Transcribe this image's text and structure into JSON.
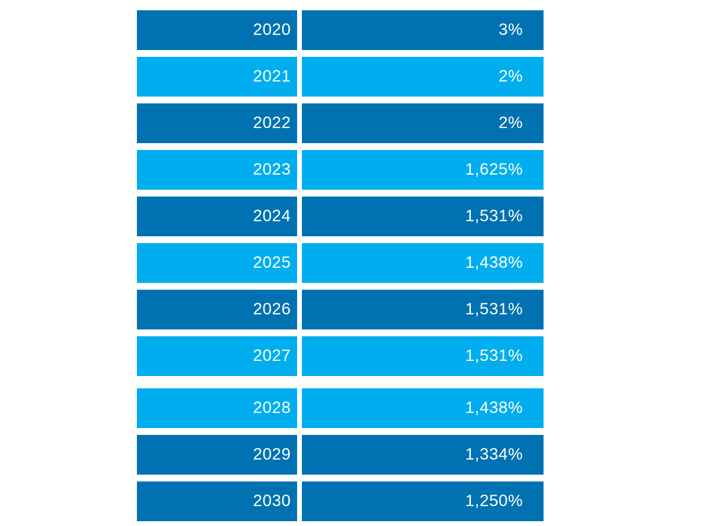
{
  "page": {
    "background_color": "#ffffff"
  },
  "palette": {
    "dark": "#0072b2",
    "light": "#00aeef",
    "text": "#ffffff"
  },
  "chart_data": {
    "type": "table",
    "description_visible_text_only": true,
    "rows": [
      {
        "year": "2020",
        "value": "3%",
        "color": "dark",
        "group_break": false
      },
      {
        "year": "2021",
        "value": "2%",
        "color": "light",
        "group_break": false
      },
      {
        "year": "2022",
        "value": "2%",
        "color": "dark",
        "group_break": false
      },
      {
        "year": "2023",
        "value": "1,625%",
        "color": "light",
        "group_break": false
      },
      {
        "year": "2024",
        "value": "1,531%",
        "color": "dark",
        "group_break": false
      },
      {
        "year": "2025",
        "value": "1,438%",
        "color": "light",
        "group_break": false
      },
      {
        "year": "2026",
        "value": "1,531%",
        "color": "dark",
        "group_break": false
      },
      {
        "year": "2027",
        "value": "1,531%",
        "color": "light",
        "group_break": false
      },
      {
        "year": "2028",
        "value": "1,438%",
        "color": "light",
        "group_break": true
      },
      {
        "year": "2029",
        "value": "1,334%",
        "color": "dark",
        "group_break": false
      },
      {
        "year": "2030",
        "value": "1,250%",
        "color": "dark",
        "group_break": false
      }
    ]
  }
}
